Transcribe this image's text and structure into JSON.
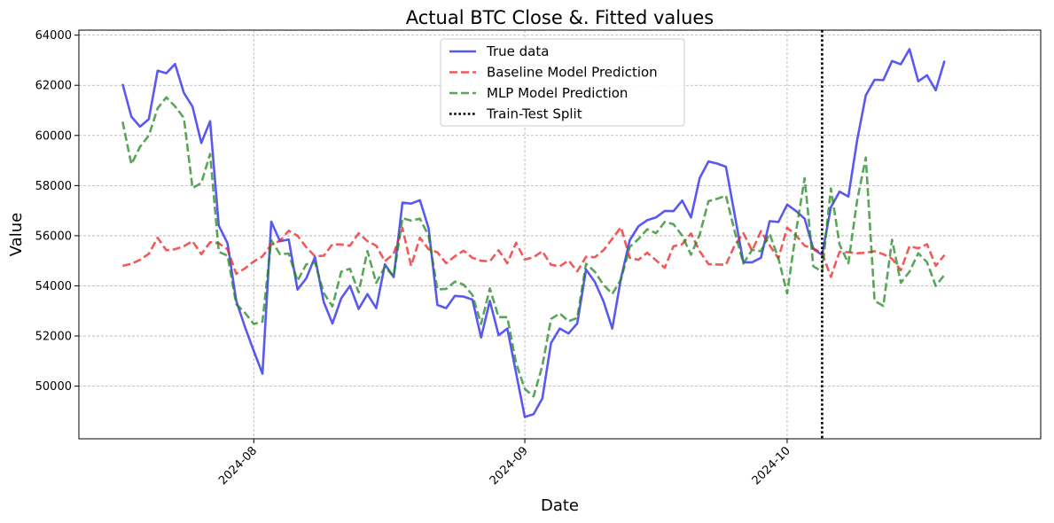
{
  "chart_data": {
    "type": "line",
    "title": "Actual BTC Close &. Fitted values",
    "xlabel": "Date",
    "ylabel": "Value",
    "x_start": "2024-07-17",
    "xlim": [
      "2024-07-12",
      "2024-10-30"
    ],
    "ylim": [
      47900,
      64200
    ],
    "y_ticks": [
      50000,
      52000,
      54000,
      56000,
      58000,
      60000,
      62000,
      64000
    ],
    "x_ticks": [
      {
        "date": "2024-08-01",
        "label": "2024-08"
      },
      {
        "date": "2024-09-01",
        "label": "2024-09"
      },
      {
        "date": "2024-10-01",
        "label": "2024-10"
      }
    ],
    "grid": true,
    "legend_position": "top-center",
    "split": {
      "name": "Train-Test Split",
      "date": "2024-10-05",
      "color": "#000000"
    },
    "series": [
      {
        "name": "True data",
        "color": "#2222ee",
        "dash": "solid",
        "values": [
          62050,
          60750,
          60350,
          60650,
          62580,
          62480,
          62850,
          61700,
          61150,
          59700,
          60570,
          56400,
          55700,
          53400,
          52350,
          51400,
          50500,
          56560,
          55780,
          55850,
          53850,
          54300,
          55150,
          53360,
          52500,
          53500,
          54000,
          53080,
          53670,
          53110,
          54860,
          54350,
          57320,
          57280,
          57420,
          56300,
          53240,
          53110,
          53600,
          53570,
          53450,
          51940,
          53400,
          52030,
          52300,
          50520,
          48770,
          48880,
          49510,
          51720,
          52300,
          52100,
          52500,
          54650,
          54160,
          53380,
          52300,
          54300,
          55820,
          56380,
          56620,
          56730,
          56990,
          56980,
          57400,
          56730,
          58300,
          58960,
          58880,
          58750,
          56830,
          54940,
          54940,
          55120,
          56580,
          56550,
          57240,
          56990,
          56680,
          55470,
          55240,
          57140,
          57760,
          57560,
          59800,
          61600,
          62220,
          62210,
          62970,
          62840,
          63440,
          62160,
          62400,
          61800,
          62980
        ]
      },
      {
        "name": "Baseline Model Prediction",
        "color": "#ee2222",
        "dash": "dashed",
        "values": [
          54800,
          54880,
          55040,
          55280,
          55920,
          55420,
          55460,
          55580,
          55780,
          55260,
          55740,
          55700,
          55460,
          54480,
          54700,
          54970,
          55180,
          55640,
          55800,
          56200,
          56000,
          55540,
          55180,
          55200,
          55660,
          55650,
          55600,
          56100,
          55780,
          55600,
          54980,
          55280,
          56300,
          54800,
          55920,
          55460,
          55340,
          54900,
          55180,
          55400,
          55120,
          55000,
          54980,
          55420,
          54900,
          55720,
          55050,
          55140,
          55380,
          54840,
          54780,
          55010,
          54580,
          55160,
          55140,
          55420,
          55880,
          56340,
          55120,
          55040,
          55320,
          55020,
          54720,
          55580,
          55660,
          56090,
          55380,
          54870,
          54850,
          54840,
          55620,
          56100,
          55400,
          56180,
          55620,
          55100,
          56320,
          56020,
          55600,
          55500,
          55300,
          54360,
          55360,
          55340,
          55300,
          55320,
          55380,
          55260,
          55080,
          54620,
          55580,
          55500,
          55660,
          54800,
          55230
        ]
      },
      {
        "name": "MLP Model Prediction",
        "color": "#228822",
        "dash": "dashed",
        "values": [
          60550,
          58850,
          59550,
          60000,
          61080,
          61520,
          61160,
          60700,
          57900,
          58100,
          59260,
          55360,
          55200,
          53270,
          52920,
          52480,
          52570,
          55820,
          55260,
          55290,
          54200,
          54860,
          54930,
          53720,
          53180,
          54560,
          54680,
          53740,
          55390,
          54120,
          54760,
          54380,
          56700,
          56600,
          56680,
          56000,
          53860,
          53880,
          54170,
          54050,
          53640,
          52480,
          53900,
          52750,
          52750,
          50920,
          49890,
          49590,
          50810,
          52680,
          52900,
          52590,
          52720,
          54880,
          54560,
          54040,
          53680,
          54250,
          55550,
          55870,
          56260,
          56100,
          56550,
          56460,
          56000,
          55240,
          56040,
          57380,
          57470,
          57600,
          56170,
          54890,
          55440,
          55380,
          56080,
          55100,
          53700,
          56120,
          58300,
          54780,
          54560,
          57890,
          55650,
          54900,
          57400,
          59120,
          53400,
          53200,
          55840,
          54120,
          54570,
          55300,
          54940,
          54000,
          54440
        ]
      }
    ]
  }
}
